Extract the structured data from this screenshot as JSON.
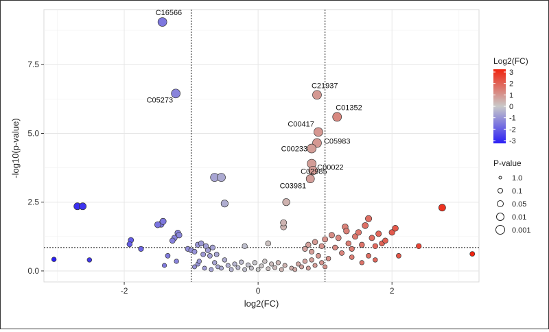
{
  "chart_data": {
    "type": "scatter",
    "title": "",
    "xlabel": "log2(FC)",
    "ylabel": "-log10(p-value)",
    "xlim": [
      -3.2,
      3.3
    ],
    "ylim": [
      -0.4,
      9.5
    ],
    "xticks": [
      -2,
      0,
      2
    ],
    "xtick_labels": [
      "-2",
      "0",
      "2"
    ],
    "yticks": [
      0,
      2.5,
      5,
      7.5
    ],
    "ytick_labels": [
      "0.0",
      "2.5",
      "5.0",
      "7.5"
    ],
    "grid": true,
    "thresholds": {
      "x": [
        -1,
        1
      ],
      "y": 0.85
    },
    "colorbar": {
      "title": "Log2(FC)",
      "min": -3,
      "max": 3,
      "ticks": [
        "3",
        "2",
        "1",
        "0",
        "-1",
        "-2",
        "-3"
      ],
      "colors": {
        "low": "#2a1ef5",
        "mid": "#c9c9c9",
        "high": "#f0230f"
      }
    },
    "size_legend": {
      "title": "P-value",
      "labels": [
        "1.0",
        "0.1",
        "0.05",
        "0.01",
        "0.001"
      ]
    },
    "points": [
      {
        "x": -1.43,
        "y": 9.05,
        "label": "C16566"
      },
      {
        "x": -1.23,
        "y": 6.45,
        "label": "C05273"
      },
      {
        "x": 0.88,
        "y": 6.4,
        "label": "C21937"
      },
      {
        "x": 1.18,
        "y": 5.6,
        "label": "C01352"
      },
      {
        "x": 0.9,
        "y": 5.05,
        "label": "C00417"
      },
      {
        "x": 0.88,
        "y": 4.65,
        "label": "C05983"
      },
      {
        "x": 0.8,
        "y": 4.45,
        "label": "C00233"
      },
      {
        "x": 0.8,
        "y": 3.9,
        "label": "C00022"
      },
      {
        "x": 0.82,
        "y": 3.65,
        "label": "C02985"
      },
      {
        "x": 0.78,
        "y": 3.35,
        "label": "C03981"
      },
      {
        "x": -0.65,
        "y": 3.4
      },
      {
        "x": -0.55,
        "y": 3.4
      },
      {
        "x": -0.5,
        "y": 2.45
      },
      {
        "x": -2.7,
        "y": 2.35
      },
      {
        "x": -2.62,
        "y": 2.35
      },
      {
        "x": -3.05,
        "y": 0.42
      },
      {
        "x": -2.52,
        "y": 0.4
      },
      {
        "x": -1.9,
        "y": 1.12
      },
      {
        "x": -1.92,
        "y": 0.97
      },
      {
        "x": -1.75,
        "y": 0.8
      },
      {
        "x": -1.45,
        "y": 1.7
      },
      {
        "x": -1.5,
        "y": 1.68
      },
      {
        "x": -1.42,
        "y": 1.8
      },
      {
        "x": -1.2,
        "y": 1.38
      },
      {
        "x": -1.18,
        "y": 1.3
      },
      {
        "x": -1.25,
        "y": 1.2
      },
      {
        "x": -1.28,
        "y": 1.1
      },
      {
        "x": -1.35,
        "y": 0.55
      },
      {
        "x": -1.4,
        "y": 0.2
      },
      {
        "x": -1.22,
        "y": 0.35
      },
      {
        "x": -1.05,
        "y": 0.8
      },
      {
        "x": -1.0,
        "y": 0.75
      },
      {
        "x": -0.95,
        "y": 0.7
      },
      {
        "x": -0.9,
        "y": 0.95
      },
      {
        "x": -0.85,
        "y": 1.0
      },
      {
        "x": -0.82,
        "y": 0.6
      },
      {
        "x": -0.78,
        "y": 0.9
      },
      {
        "x": -0.75,
        "y": 0.75
      },
      {
        "x": -0.72,
        "y": 0.55
      },
      {
        "x": -0.68,
        "y": 0.85
      },
      {
        "x": -0.62,
        "y": 0.6
      },
      {
        "x": -0.95,
        "y": 0.15
      },
      {
        "x": -0.9,
        "y": 0.25
      },
      {
        "x": -0.88,
        "y": 0.35
      },
      {
        "x": -0.8,
        "y": 0.1
      },
      {
        "x": -0.7,
        "y": 0.05
      },
      {
        "x": -0.65,
        "y": 0.3
      },
      {
        "x": -0.6,
        "y": 0.15
      },
      {
        "x": -0.55,
        "y": 0.1
      },
      {
        "x": -0.5,
        "y": 0.4
      },
      {
        "x": -0.45,
        "y": 0.2
      },
      {
        "x": -0.4,
        "y": 0.05
      },
      {
        "x": -0.35,
        "y": 0.25
      },
      {
        "x": -0.3,
        "y": 0.12
      },
      {
        "x": -0.25,
        "y": 0.32
      },
      {
        "x": -0.2,
        "y": 0.05
      },
      {
        "x": -0.15,
        "y": 0.22
      },
      {
        "x": -0.1,
        "y": 0.1
      },
      {
        "x": -0.05,
        "y": 0.3
      },
      {
        "x": 0.0,
        "y": 0.05
      },
      {
        "x": 0.05,
        "y": 0.18
      },
      {
        "x": 0.1,
        "y": 0.35
      },
      {
        "x": 0.15,
        "y": 0.08
      },
      {
        "x": 0.2,
        "y": 0.25
      },
      {
        "x": 0.25,
        "y": 0.12
      },
      {
        "x": 0.3,
        "y": 0.3
      },
      {
        "x": 0.35,
        "y": 0.05
      },
      {
        "x": 0.4,
        "y": 0.2
      },
      {
        "x": -0.2,
        "y": 0.9
      },
      {
        "x": 0.15,
        "y": 1.0
      },
      {
        "x": 0.38,
        "y": 1.6
      },
      {
        "x": 0.38,
        "y": 1.75
      },
      {
        "x": 0.42,
        "y": 2.5
      },
      {
        "x": 0.5,
        "y": 0.1
      },
      {
        "x": 0.55,
        "y": 0.05
      },
      {
        "x": 0.6,
        "y": 0.25
      },
      {
        "x": 0.65,
        "y": 0.15
      },
      {
        "x": 0.7,
        "y": 0.35
      },
      {
        "x": 0.75,
        "y": 0.1
      },
      {
        "x": 0.8,
        "y": 0.4
      },
      {
        "x": 0.85,
        "y": 0.2
      },
      {
        "x": 0.9,
        "y": 0.55
      },
      {
        "x": 0.95,
        "y": 0.3
      },
      {
        "x": 1.0,
        "y": 0.15
      },
      {
        "x": 1.05,
        "y": 0.45
      },
      {
        "x": 0.7,
        "y": 0.8
      },
      {
        "x": 0.75,
        "y": 0.95
      },
      {
        "x": 0.8,
        "y": 0.7
      },
      {
        "x": 0.85,
        "y": 1.05
      },
      {
        "x": 0.95,
        "y": 0.9
      },
      {
        "x": 1.0,
        "y": 1.15
      },
      {
        "x": 1.1,
        "y": 1.3
      },
      {
        "x": 1.15,
        "y": 0.85
      },
      {
        "x": 1.2,
        "y": 1.2
      },
      {
        "x": 1.25,
        "y": 0.65
      },
      {
        "x": 1.3,
        "y": 1.6
      },
      {
        "x": 1.32,
        "y": 1.45
      },
      {
        "x": 1.35,
        "y": 1.0
      },
      {
        "x": 1.4,
        "y": 0.8
      },
      {
        "x": 1.45,
        "y": 1.25
      },
      {
        "x": 1.5,
        "y": 1.4
      },
      {
        "x": 1.55,
        "y": 0.95
      },
      {
        "x": 1.6,
        "y": 1.65
      },
      {
        "x": 1.65,
        "y": 1.9
      },
      {
        "x": 1.7,
        "y": 1.2
      },
      {
        "x": 1.75,
        "y": 0.9
      },
      {
        "x": 1.8,
        "y": 1.35
      },
      {
        "x": 1.85,
        "y": 1.0
      },
      {
        "x": 1.9,
        "y": 1.1
      },
      {
        "x": 2.0,
        "y": 1.4
      },
      {
        "x": 2.05,
        "y": 1.55
      },
      {
        "x": 2.1,
        "y": 0.55
      },
      {
        "x": 1.4,
        "y": 0.5
      },
      {
        "x": 1.55,
        "y": 0.3
      },
      {
        "x": 1.65,
        "y": 0.55
      },
      {
        "x": 1.75,
        "y": 0.4
      },
      {
        "x": 2.4,
        "y": 0.9
      },
      {
        "x": 2.75,
        "y": 2.3
      },
      {
        "x": 3.2,
        "y": 0.62
      }
    ]
  }
}
